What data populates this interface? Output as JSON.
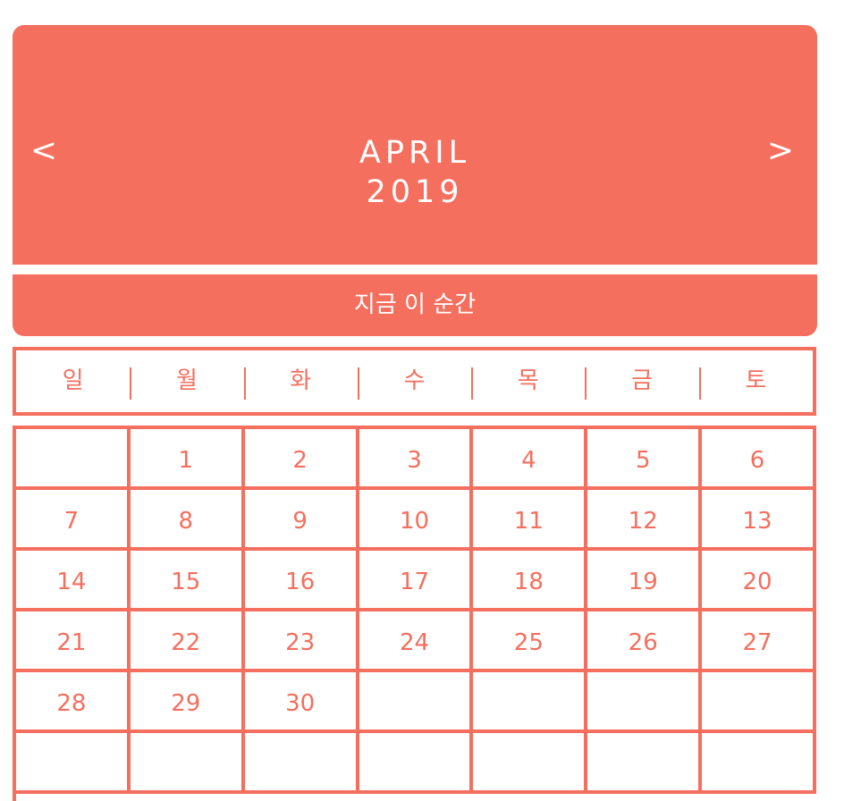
{
  "header": {
    "month": "APRIL",
    "year": "2019",
    "prev_label": "<",
    "next_label": ">",
    "background_color": "#f46f5e",
    "text_color": "#ffffff"
  },
  "now_button": {
    "label": "지금 이 순간"
  },
  "weekdays": [
    "일",
    "월",
    "화",
    "수",
    "목",
    "금",
    "토"
  ],
  "calendar": {
    "weeks": [
      [
        "",
        "1",
        "2",
        "3",
        "4",
        "5",
        "6"
      ],
      [
        "7",
        "8",
        "9",
        "10",
        "11",
        "12",
        "13"
      ],
      [
        "14",
        "15",
        "16",
        "17",
        "18",
        "19",
        "20"
      ],
      [
        "21",
        "22",
        "23",
        "24",
        "25",
        "26",
        "27"
      ],
      [
        "28",
        "29",
        "30",
        "",
        "",
        "",
        ""
      ],
      [
        "",
        "",
        "",
        "",
        "",
        "",
        ""
      ]
    ]
  },
  "accent_color": "#f46f5e"
}
